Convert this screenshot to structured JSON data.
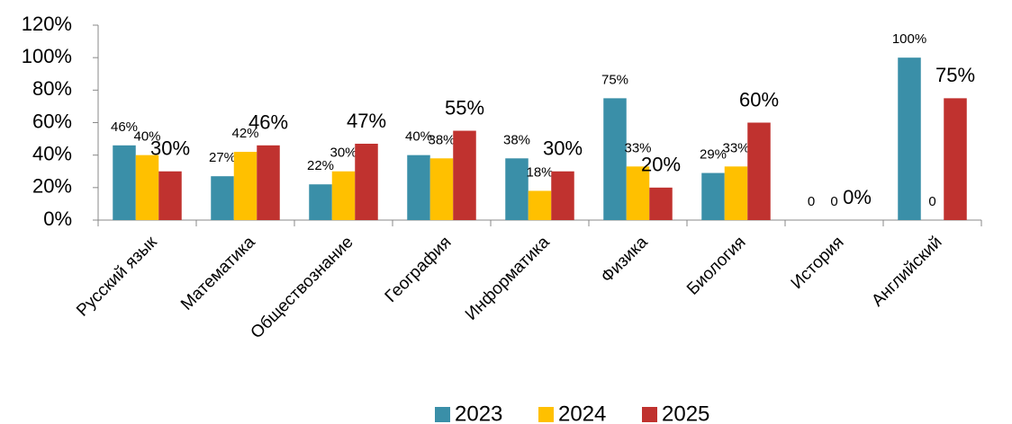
{
  "chart_data": {
    "type": "bar",
    "categories": [
      "Русский язык",
      "Математика",
      "Обществознание",
      "География",
      "Информатика",
      "Физика",
      "Биология",
      "История",
      "Английский"
    ],
    "series": [
      {
        "name": "2023",
        "color": "#3a8fa8",
        "values": [
          46,
          27,
          22,
          40,
          38,
          75,
          29,
          0,
          100
        ],
        "value_labels": [
          "46%",
          "27%",
          "22%",
          "40%",
          "38%",
          "75%",
          "29%",
          "0",
          "100%"
        ]
      },
      {
        "name": "2024",
        "color": "#ffc000",
        "values": [
          40,
          42,
          30,
          38,
          18,
          33,
          33,
          0,
          0
        ],
        "value_labels": [
          "40%",
          "42%",
          "30%",
          "38%",
          "18%",
          "33%",
          "33%",
          "0",
          "0"
        ]
      },
      {
        "name": "2025",
        "color": "#c0322f",
        "values": [
          30,
          46,
          47,
          55,
          30,
          20,
          60,
          0,
          75
        ],
        "value_labels": [
          "30%",
          "46%",
          "47%",
          "55%",
          "30%",
          "20%",
          "60%",
          "0%",
          "75%"
        ]
      }
    ],
    "ylim": [
      0,
      120
    ],
    "yticks": [
      {
        "value": 0,
        "label": "0%"
      },
      {
        "value": 20,
        "label": "20%"
      },
      {
        "value": 40,
        "label": "40%"
      },
      {
        "value": 60,
        "label": "60%"
      },
      {
        "value": 80,
        "label": "80%"
      },
      {
        "value": 100,
        "label": "100%"
      },
      {
        "value": 120,
        "label": "120%"
      }
    ],
    "grid": false,
    "legend": "bottom"
  }
}
